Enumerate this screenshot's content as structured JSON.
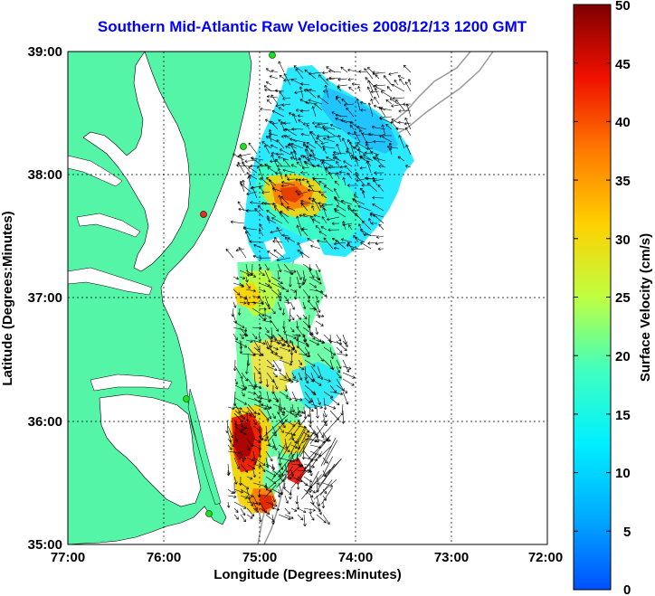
{
  "map": {
    "title": "Southern Mid-Atlantic Raw Velocities 2008/12/13 1200 GMT",
    "xlabel": "Longitude (Degrees:Minutes)",
    "ylabel": "Latitude (Degrees:Minutes)",
    "x_ticks": [
      "77:00",
      "76:00",
      "75:00",
      "74:00",
      "73:00",
      "72:00"
    ],
    "y_ticks": [
      "39:00",
      "38:00",
      "37:00",
      "36:00",
      "35:00"
    ],
    "x_range": [
      -77,
      -72
    ],
    "y_range": [
      35,
      39
    ],
    "colorbar": {
      "label": "Surface Velocity (cm/s)",
      "ticks": [
        "50",
        "45",
        "40",
        "35",
        "30",
        "25",
        "20",
        "15",
        "10",
        "5",
        "0"
      ],
      "range": [
        0,
        50
      ]
    },
    "colors": {
      "land": "#55f5a8",
      "water": "#ffffff",
      "title": "#0000ff",
      "grid": "#000000",
      "bathymetry": "#9a9a9a"
    }
  }
}
